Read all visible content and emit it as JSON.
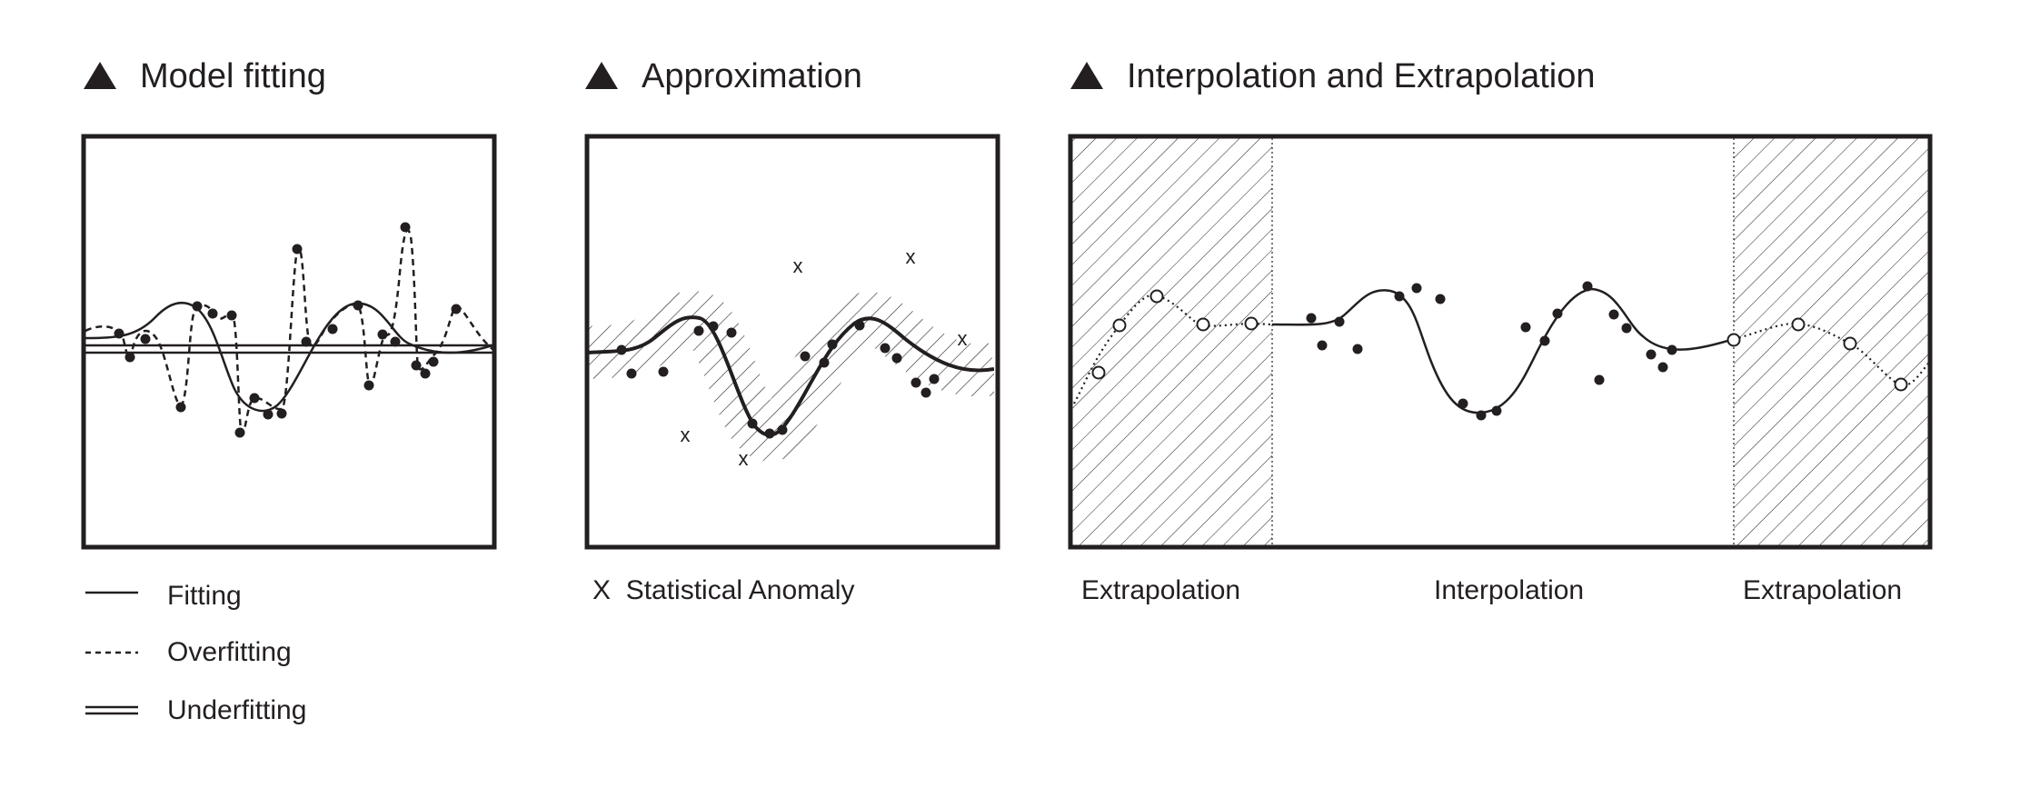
{
  "colors": {
    "ink": "#231f20",
    "background": "#ffffff"
  },
  "panels": {
    "model_fitting": {
      "title": "Model fitting",
      "icon": "triangle-bullet-icon",
      "legend": [
        {
          "style": "solid",
          "label": "Fitting"
        },
        {
          "style": "dashed",
          "label": "Overfitting"
        },
        {
          "style": "double",
          "label": "Underfitting"
        }
      ]
    },
    "approximation": {
      "title": "Approximation",
      "icon": "triangle-bullet-icon",
      "legend_marker": "X",
      "legend_label": "Statistical Anomaly",
      "anomaly_marker": "x"
    },
    "interpolation": {
      "title": "Interpolation and Extrapolation",
      "icon": "triangle-bullet-icon",
      "regions": [
        "Extrapolation",
        "Interpolation",
        "Extrapolation"
      ]
    }
  }
}
